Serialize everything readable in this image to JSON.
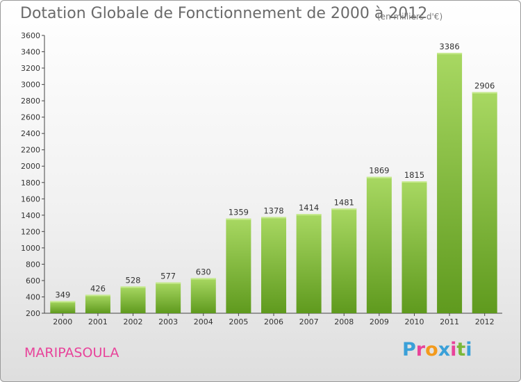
{
  "title": "Dotation Globale de Fonctionnement de 2000 à 2012",
  "subtitle": "(en milliers d'€)",
  "commune": "MARIPASOULA",
  "logo": {
    "letters": [
      "P",
      "r",
      "o",
      "x",
      "i",
      "t",
      "i"
    ],
    "colors": [
      "#3aa0d8",
      "#e8439a",
      "#f39a1c",
      "#3aa0d8",
      "#e8439a",
      "#7ab83a",
      "#3aa0d8"
    ]
  },
  "colors": {
    "bar_top": "#a8d862",
    "bar_bottom": "#5f9a1e",
    "commune": "#e8439a"
  },
  "chart_data": {
    "type": "bar",
    "title": "Dotation Globale de Fonctionnement de 2000 à 2012",
    "subtitle": "(en milliers d'€)",
    "categories": [
      "2000",
      "2001",
      "2002",
      "2003",
      "2004",
      "2005",
      "2006",
      "2007",
      "2008",
      "2009",
      "2010",
      "2011",
      "2012"
    ],
    "values": [
      349,
      426,
      528,
      577,
      630,
      1359,
      1378,
      1414,
      1481,
      1869,
      1815,
      3386,
      2906
    ],
    "ylim": [
      200,
      3600
    ],
    "yticks": [
      200,
      400,
      600,
      800,
      1000,
      1200,
      1400,
      1600,
      1800,
      2000,
      2200,
      2400,
      2600,
      2800,
      3000,
      3200,
      3400,
      3600
    ],
    "grid": false,
    "legend": "none"
  }
}
